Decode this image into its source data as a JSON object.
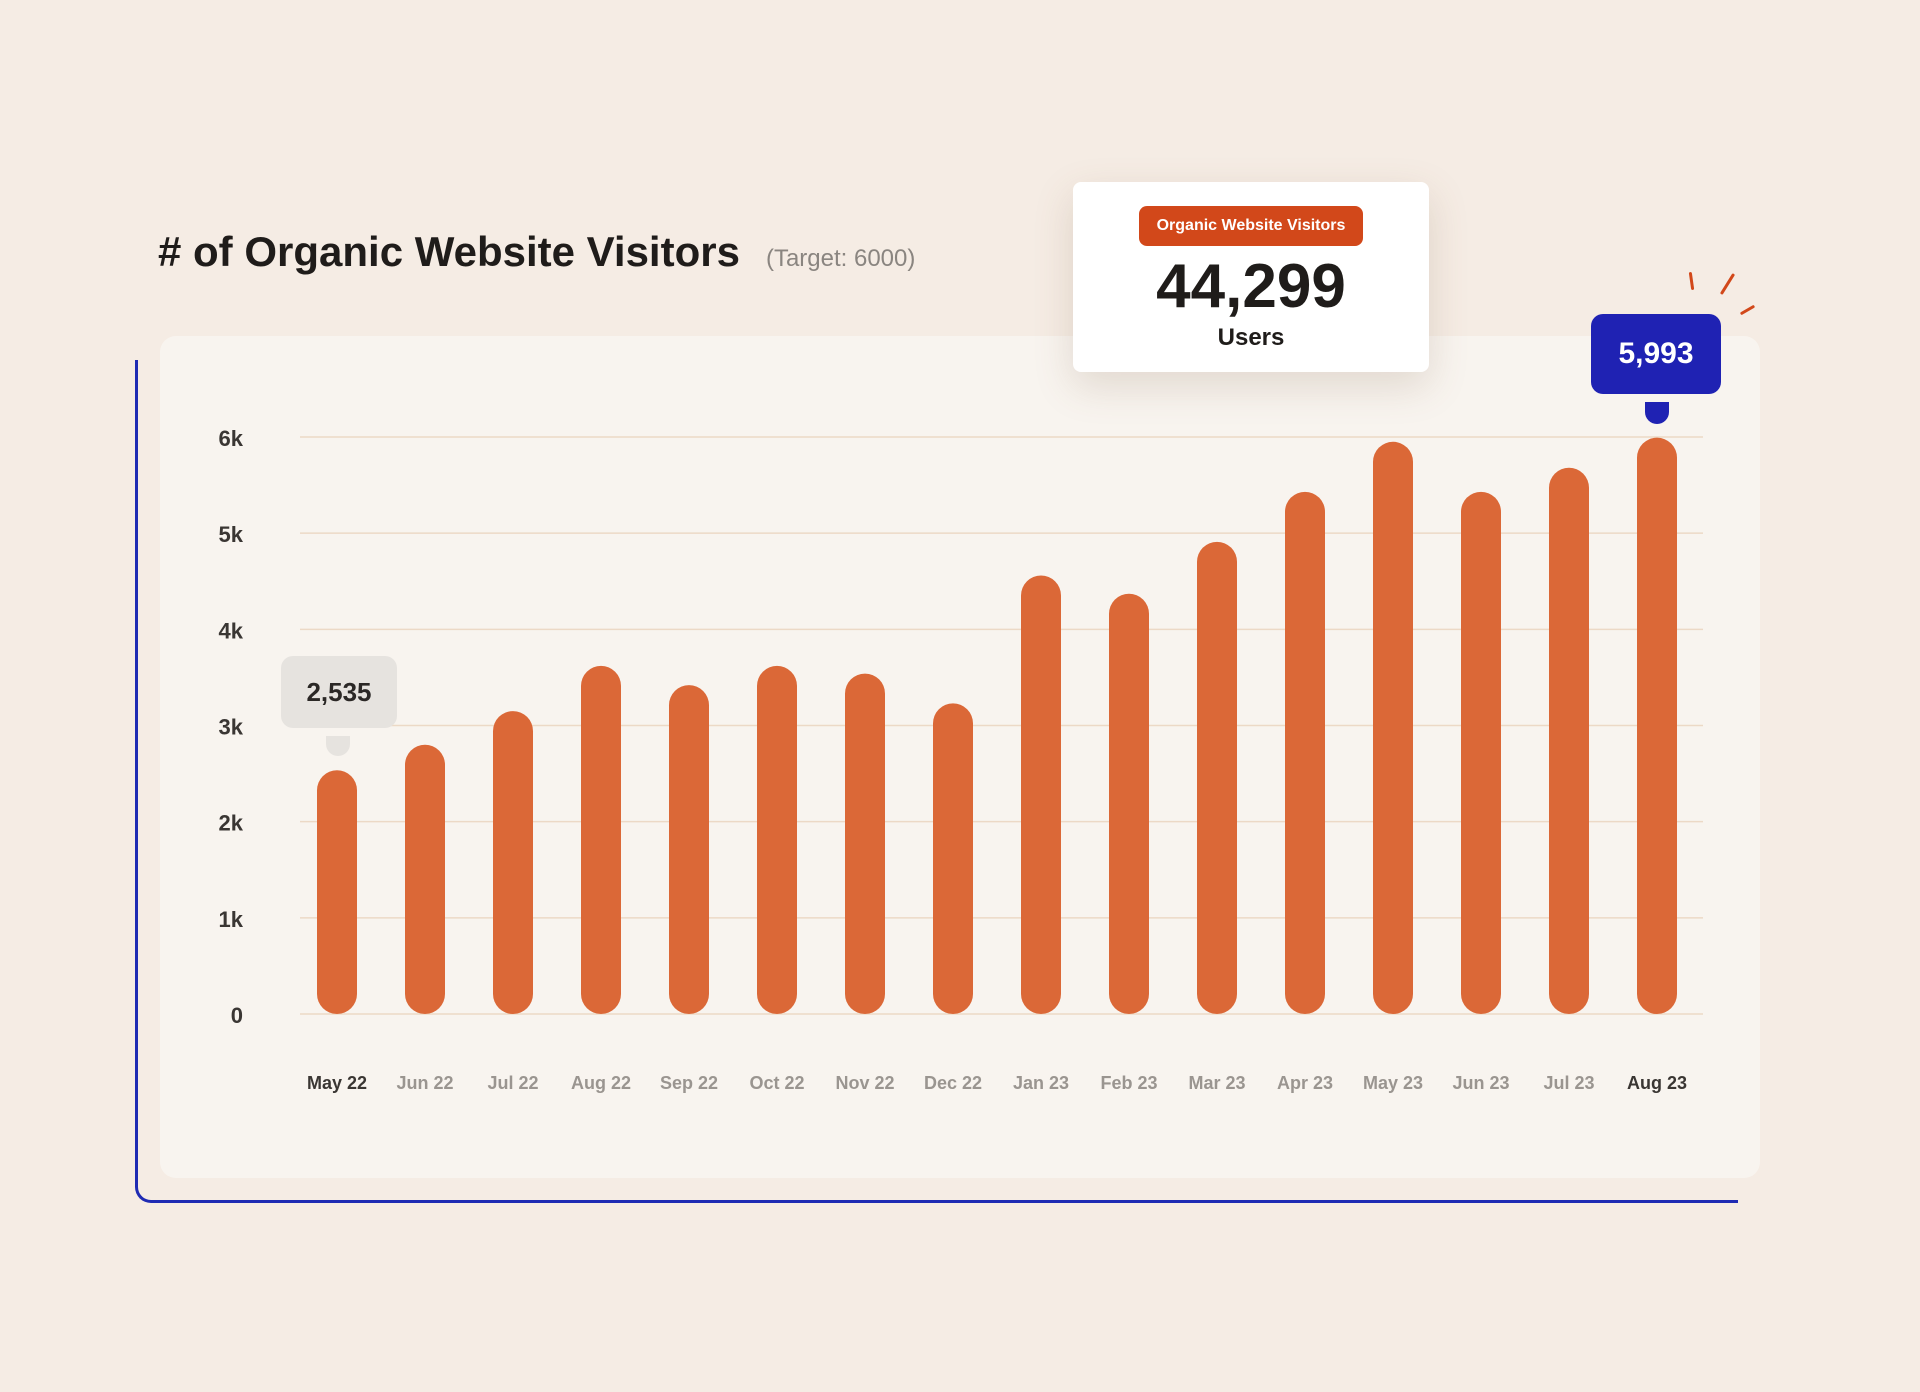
{
  "header": {
    "title": "# of Organic Website Visitors",
    "subtitle": "(Target: 6000)"
  },
  "stat_card": {
    "badge": "Organic Website Visitors",
    "value": "44,299",
    "unit": "Users"
  },
  "callouts": {
    "min_label": "2,535",
    "max_label": "5,993"
  },
  "colors": {
    "bar": "#db6837",
    "grid": "#ecd9c6",
    "accent_blue": "#1f22b3",
    "badge_orange": "#d2481a"
  },
  "chart_data": {
    "type": "bar",
    "title": "# of Organic Website Visitors",
    "subtitle": "(Target: 6000)",
    "categories": [
      "May 22",
      "Jun 22",
      "Jul 22",
      "Aug 22",
      "Sep 22",
      "Oct 22",
      "Nov 22",
      "Dec 22",
      "Jan 23",
      "Feb 23",
      "Mar 23",
      "Apr 23",
      "May 23",
      "Jun 23",
      "Jul 23",
      "Aug 23"
    ],
    "values": [
      2535,
      2800,
      3150,
      3620,
      3420,
      3620,
      3540,
      3230,
      4560,
      4370,
      4910,
      5430,
      5950,
      5430,
      5680,
      5993
    ],
    "ylim": [
      0,
      6000
    ],
    "yticks": [
      0,
      1000,
      2000,
      3000,
      4000,
      5000,
      6000
    ],
    "ytick_labels": [
      "0",
      "1k",
      "2k",
      "3k",
      "4k",
      "5k",
      "6k"
    ],
    "highlighted_categories": [
      "May 22",
      "Aug 23"
    ],
    "grid": true,
    "xlabel": "",
    "ylabel": ""
  }
}
